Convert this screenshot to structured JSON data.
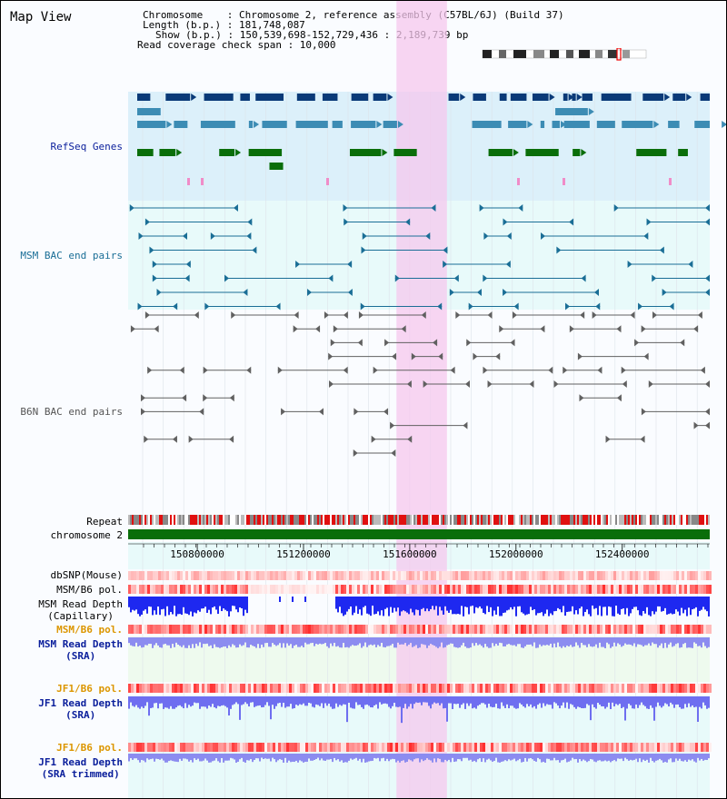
{
  "view_title": "Map View",
  "info": {
    "chromosome": "Chromosome    : Chromosome 2, reference assembly (C57BL/6J) (Build 37)",
    "length": "Length (b.p.) : 181,748,087",
    "show": "Show (b.p.) : 150,539,698-152,729,436 : 2,189,739 bp",
    "coverage": "Read coverage check span : 10,000"
  },
  "axis": {
    "start_bp": 150539698,
    "end_bp": 152729436,
    "ticks": [
      150800000,
      151200000,
      151600000,
      152000000,
      152400000
    ],
    "tick_labels": [
      "150800000",
      "151200000",
      "151600000",
      "152000000",
      "152400000"
    ]
  },
  "highlight": {
    "start_bp": 151550000,
    "end_bp": 151740000
  },
  "tracks": {
    "refseq": "RefSeq Genes",
    "msm_bac": "MSM BAC end pairs",
    "b6n_bac": "B6N BAC end pairs",
    "repeat": "Repeat",
    "chromosome": "chromosome 2",
    "dbsnp": "dbSNP(Mouse)",
    "msm_b6_pol_1": "MSM/B6 pol.",
    "msm_depth_cap_1": "MSM Read Depth",
    "msm_depth_cap_2": "(Capillary)",
    "msm_b6_pol_2": "MSM/B6 pol.",
    "msm_depth_sra_1": "MSM Read Depth",
    "msm_depth_sra_2": "(SRA)",
    "jf1_b6_pol_1": "JF1/B6 pol.",
    "jf1_depth_sra_1": "JF1 Read Depth",
    "jf1_depth_sra_2": "(SRA)",
    "jf1_b6_pol_2": "JF1/B6 pol.",
    "jf1_depth_trim_1": "JF1 Read Depth",
    "jf1_depth_trim_2": "(SRA trimmed)"
  },
  "colors": {
    "refseq_bg": "#dcf0fa",
    "bac_bg": "#e8fafa",
    "gene_dark": "#0a3a78",
    "gene_mid": "#3c8cb4",
    "gene_green": "#0a6e0a",
    "msm_bac": "#1a6e96",
    "b6n_bac": "#606060",
    "highlight": "#f5c8ee",
    "chromosome_bar": "#0a6e0a",
    "depth_blue": "#1e28f0",
    "depth_light": "#8c8cf0",
    "pol_red": "#e63c3c",
    "label_blue": "#0a1e9b",
    "label_orange": "#dc9600"
  }
}
